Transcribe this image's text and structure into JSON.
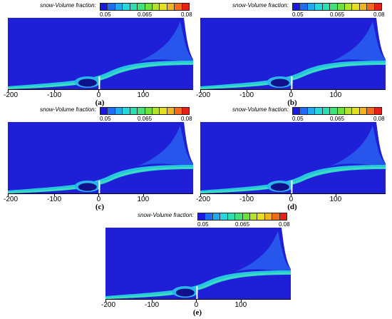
{
  "legend_title": "snow-Volume fraction:",
  "colorbar": {
    "tick_labels": [
      "0.05",
      "0.065",
      "0.08"
    ],
    "colors": [
      "#1a1ae6",
      "#1f6cf5",
      "#21aaf0",
      "#27d7de",
      "#2be0b0",
      "#41e27a",
      "#6de23a",
      "#b2e22a",
      "#e6de22",
      "#f0b41d",
      "#f26a1a",
      "#e82015"
    ]
  },
  "x_tick_labels": [
    "-200",
    "-100",
    "0",
    "100"
  ],
  "panels": [
    {
      "id": "a",
      "caption": "(a)"
    },
    {
      "id": "b",
      "caption": "(b)"
    },
    {
      "id": "c",
      "caption": "(c)"
    },
    {
      "id": "d",
      "caption": "(d)"
    },
    {
      "id": "e",
      "caption": "(e)"
    }
  ],
  "chart_data": {
    "type": "heatmap",
    "variable": "snow-Volume fraction",
    "colorbar_range": [
      0.05,
      0.08
    ],
    "colorbar_ticks": [
      0.05,
      0.065,
      0.08
    ],
    "x_ticks": [
      -200,
      -100,
      0,
      100
    ],
    "panel_count": 5
  }
}
